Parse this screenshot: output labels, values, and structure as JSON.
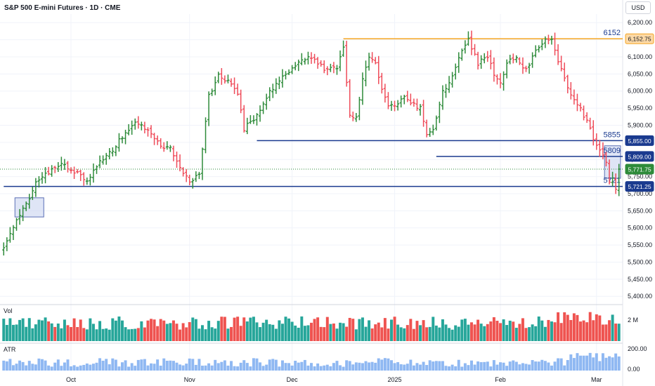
{
  "header": {
    "symbol_title": "S&P 500 E-mini Futures · 1D · CME",
    "currency": "USD"
  },
  "colors": {
    "up": "#2e8b3a",
    "down": "#ef4c5a",
    "vol_up": "#26a69a",
    "vol_down": "#ef5350",
    "atr": "#8fb8f2",
    "level_blue": "#1a3a8f",
    "level_orange": "#f5a623",
    "box_fill": "#c9d4f0",
    "grid": "#f0f3fa",
    "axis_text": "#131722"
  },
  "chart_data": {
    "type": "ohlc",
    "title": "S&P 500 E-mini Futures · 1D · CME",
    "price_axis": {
      "ticks": [
        "6,200.00",
        "6,150.00",
        "6,100.00",
        "6,050.00",
        "6,000.00",
        "5,950.00",
        "5,900.00",
        "5,850.00",
        "5,800.00",
        "5,750.00",
        "5,700.00",
        "5,650.00",
        "5,600.00",
        "5,550.00",
        "5,500.00",
        "5,450.00",
        "5,400.00"
      ],
      "tick_values": [
        6200,
        6150,
        6100,
        6050,
        6000,
        5950,
        5900,
        5850,
        5800,
        5750,
        5700,
        5650,
        5600,
        5550,
        5500,
        5450,
        5400
      ]
    },
    "time_axis": {
      "labels": [
        "Oct",
        "Nov",
        "Dec",
        "2025",
        "Feb",
        "Mar"
      ],
      "label_bar_index": [
        21,
        58,
        90,
        122,
        155,
        185
      ]
    },
    "bar_count": 193,
    "price_keypoints": [
      [
        0,
        5545
      ],
      [
        5,
        5640
      ],
      [
        8,
        5690
      ],
      [
        10,
        5735
      ],
      [
        14,
        5760
      ],
      [
        18,
        5790
      ],
      [
        22,
        5765
      ],
      [
        26,
        5735
      ],
      [
        30,
        5790
      ],
      [
        34,
        5830
      ],
      [
        38,
        5880
      ],
      [
        41,
        5910
      ],
      [
        45,
        5880
      ],
      [
        49,
        5840
      ],
      [
        52,
        5830
      ],
      [
        55,
        5780
      ],
      [
        58,
        5730
      ],
      [
        61,
        5760
      ],
      [
        64,
        5985
      ],
      [
        67,
        6045
      ],
      [
        70,
        6030
      ],
      [
        73,
        5990
      ],
      [
        75,
        5890
      ],
      [
        78,
        5920
      ],
      [
        80,
        5950
      ],
      [
        83,
        6000
      ],
      [
        87,
        6040
      ],
      [
        91,
        6080
      ],
      [
        95,
        6100
      ],
      [
        98,
        6080
      ],
      [
        101,
        6060
      ],
      [
        104,
        6070
      ],
      [
        106,
        6130
      ],
      [
        108,
        5930
      ],
      [
        110,
        5920
      ],
      [
        112,
        6040
      ],
      [
        114,
        6100
      ],
      [
        116,
        6080
      ],
      [
        118,
        6000
      ],
      [
        120,
        5960
      ],
      [
        122,
        5950
      ],
      [
        124,
        5980
      ],
      [
        126,
        5980
      ],
      [
        128,
        5960
      ],
      [
        130,
        5950
      ],
      [
        132,
        5870
      ],
      [
        134,
        5890
      ],
      [
        137,
        6000
      ],
      [
        140,
        6040
      ],
      [
        143,
        6120
      ],
      [
        145,
        6150
      ],
      [
        148,
        6080
      ],
      [
        151,
        6100
      ],
      [
        153,
        6050
      ],
      [
        155,
        6030
      ],
      [
        157,
        6080
      ],
      [
        160,
        6100
      ],
      [
        163,
        6060
      ],
      [
        166,
        6120
      ],
      [
        169,
        6145
      ],
      [
        171,
        6152
      ],
      [
        173,
        6080
      ],
      [
        175,
        6040
      ],
      [
        177,
        5990
      ],
      [
        180,
        5950
      ],
      [
        182,
        5910
      ],
      [
        184,
        5860
      ],
      [
        186,
        5830
      ],
      [
        188,
        5790
      ],
      [
        189,
        5740
      ],
      [
        190,
        5740
      ],
      [
        191,
        5715
      ],
      [
        192,
        5771.75
      ]
    ],
    "levels": [
      {
        "label": "6152",
        "value": 6152.75,
        "tag": "6,152.75",
        "color": "#f5a623",
        "start_bar": 106
      },
      {
        "label": "5855",
        "value": 5855.0,
        "tag": "5,855.00",
        "color": "#1a3a8f",
        "start_bar": 79
      },
      {
        "label": "5809",
        "value": 5809.0,
        "tag": "5,809.00",
        "color": "#1a3a8f",
        "start_bar": 135
      },
      {
        "label": "5721",
        "value": 5721.25,
        "tag": "5,721.25",
        "color": "#1a3a8f",
        "start_bar": 0
      }
    ],
    "current_price": {
      "value": 5771.75,
      "tag": "5,771.75",
      "color": "#2e8b3a"
    },
    "highlight_boxes": [
      {
        "bar_from": 4,
        "bar_to": 12,
        "price_low": 5632,
        "price_high": 5688
      },
      {
        "bar_from": 188,
        "bar_to": 192,
        "price_low": 5745,
        "price_high": 5840
      }
    ],
    "volume": {
      "label": "Vol",
      "axis_ticks": [
        "2 M"
      ],
      "tick_values": [
        2000000
      ],
      "max_value": 3400000
    },
    "atr": {
      "label": "ATR",
      "axis_ticks": [
        "200.00",
        "0.00"
      ],
      "tick_values": [
        200,
        0
      ],
      "max_value": 200
    }
  }
}
